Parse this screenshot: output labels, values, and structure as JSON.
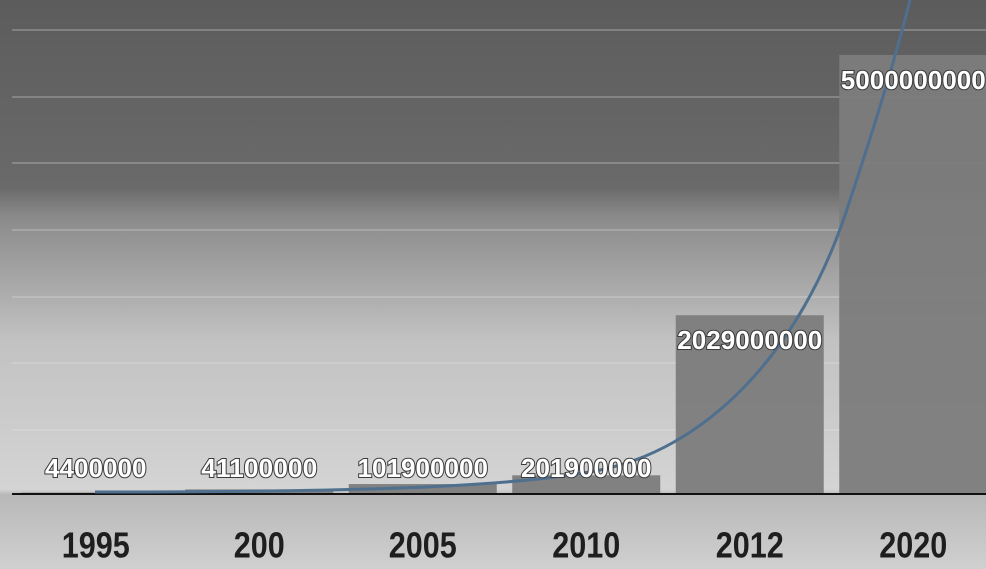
{
  "chart_data": {
    "type": "bar",
    "categories": [
      "1995",
      "200",
      "2005",
      "2010",
      "2012",
      "2020"
    ],
    "values": [
      4400000,
      41100000,
      101900000,
      201900000,
      2029000000,
      5000000000
    ],
    "color": "#7c7c7c"
  }
}
